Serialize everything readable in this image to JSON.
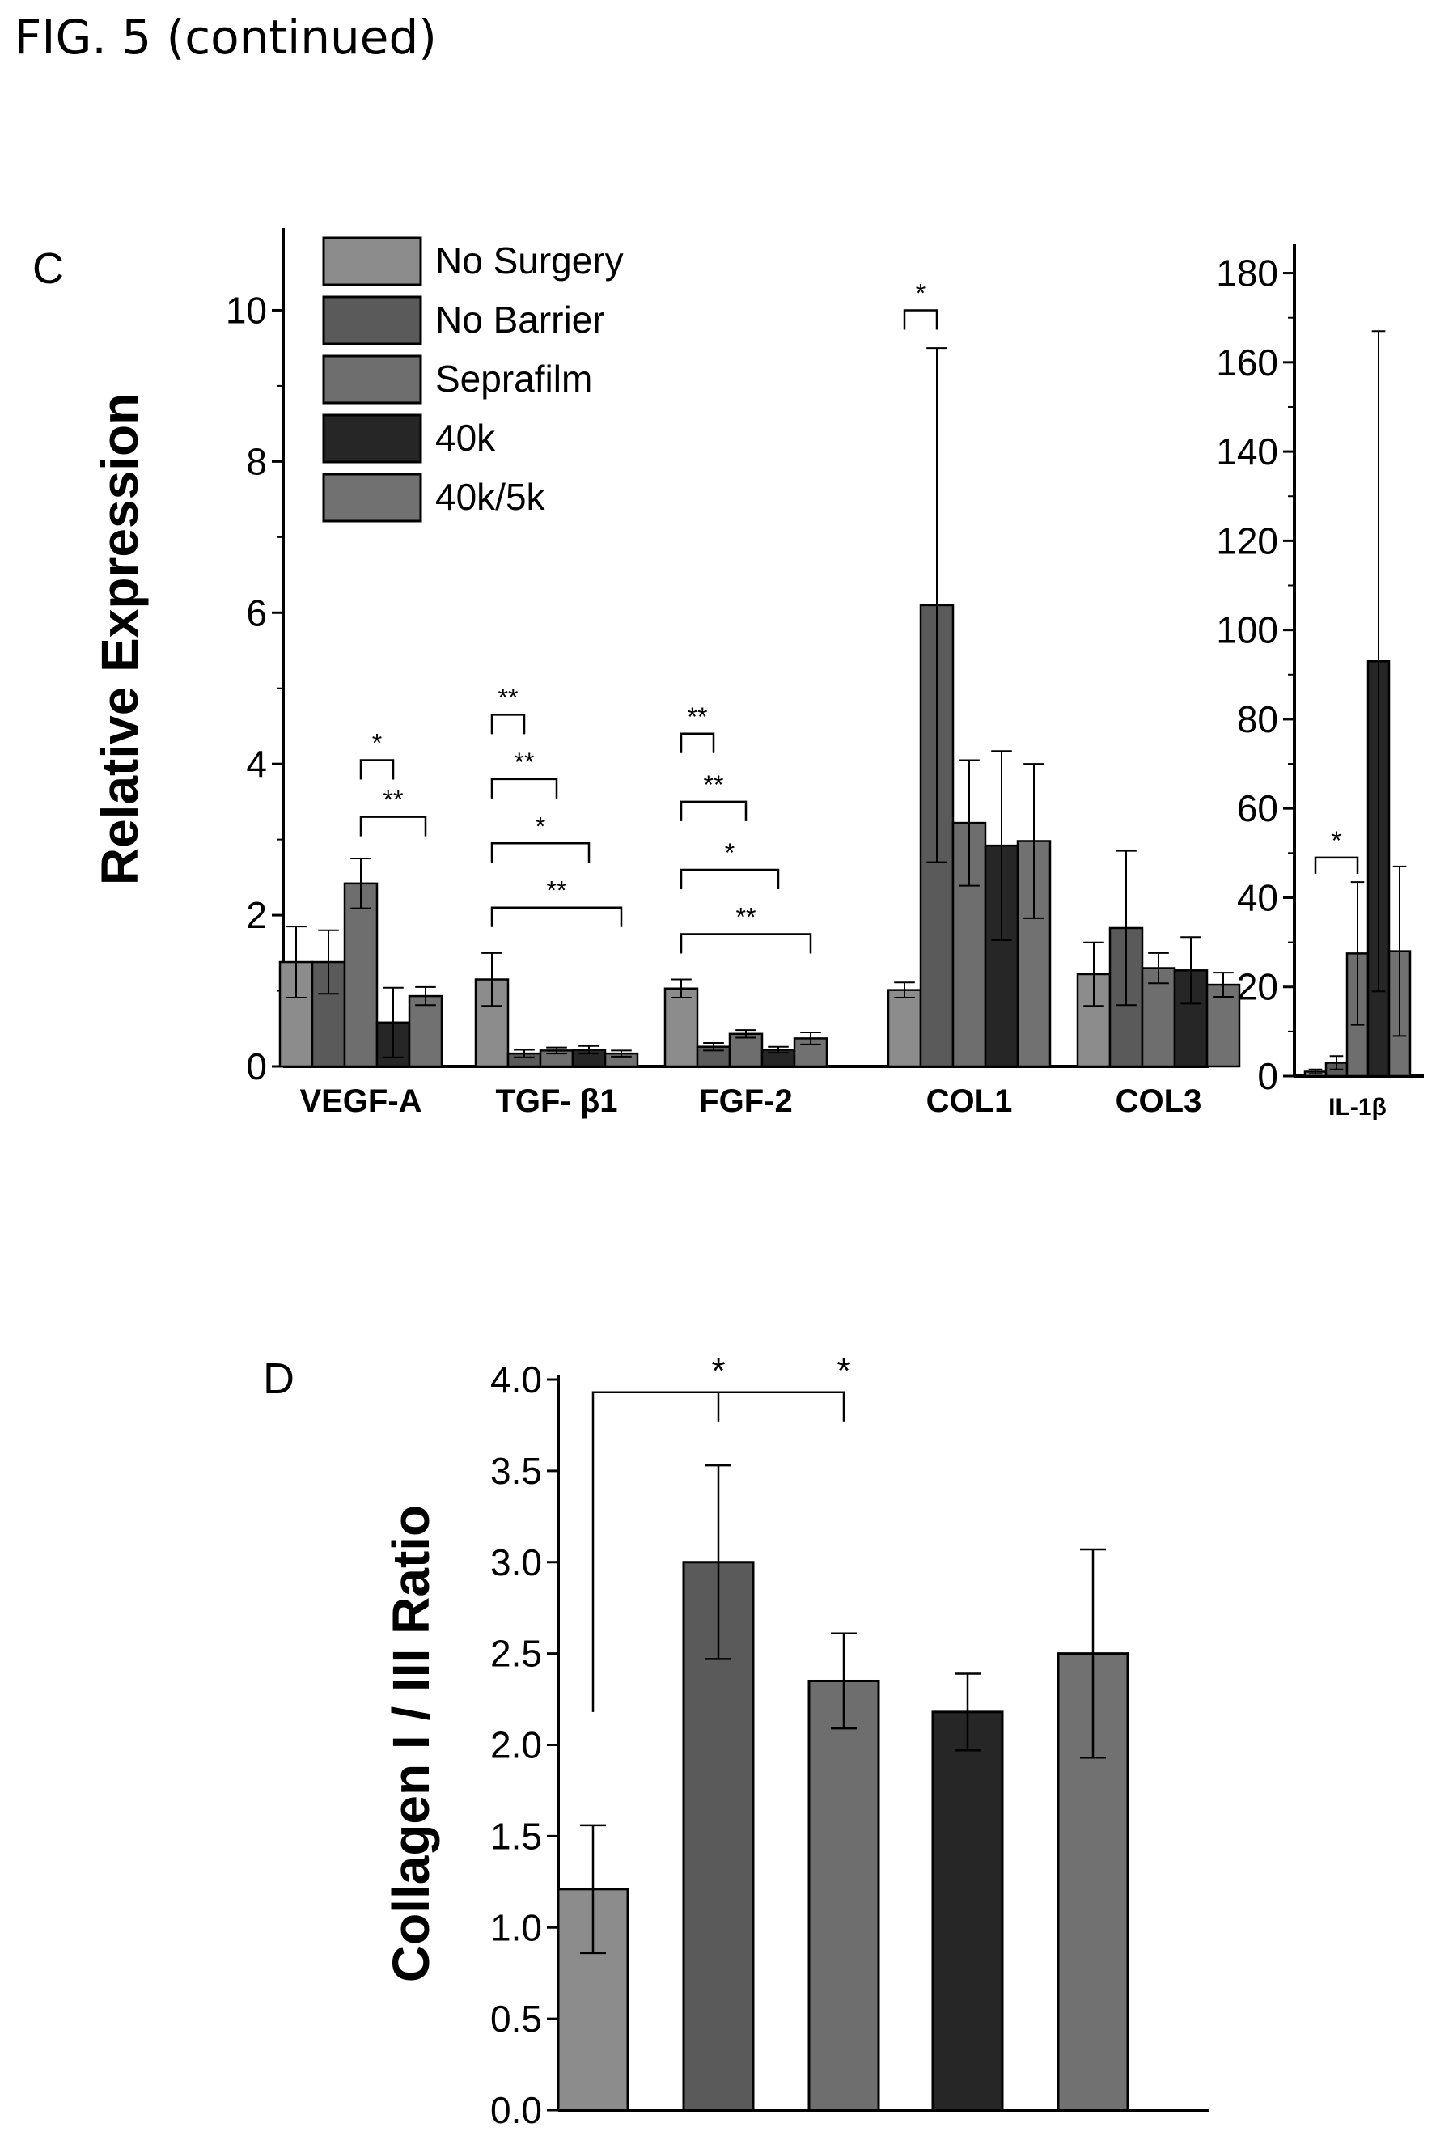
{
  "page": {
    "caption": "FIG. 5 (continued)"
  },
  "colors": {
    "No Surgery": "#8c8c8c",
    "No Barrier": "#5a5a5a",
    "Seprafilm": "#6e6e6e",
    "40k": "#262626",
    "40k/5k": "#717171"
  },
  "chart_data": [
    {
      "panel": "C",
      "type": "bar",
      "ylabel": "Relative Expression",
      "ylim": [
        0,
        11
      ],
      "yticks": [
        0,
        2,
        4,
        6,
        8,
        10
      ],
      "legend": [
        "No Surgery",
        "No Barrier",
        "Seprafilm",
        "40k",
        "40k/5k"
      ],
      "legend_position": "top-left",
      "categories": [
        "VEGF-A",
        "TGF- β1",
        "FGF-2",
        "COL1",
        "COL3"
      ],
      "series": [
        {
          "name": "No Surgery",
          "values": [
            1.38,
            1.15,
            1.03,
            1.01,
            1.22
          ],
          "errors": [
            0.47,
            0.35,
            0.12,
            0.1,
            0.42
          ]
        },
        {
          "name": "No Barrier",
          "values": [
            1.38,
            0.17,
            0.26,
            6.1,
            1.83
          ],
          "errors": [
            0.42,
            0.05,
            0.05,
            3.4,
            1.02
          ]
        },
        {
          "name": "Seprafilm",
          "values": [
            2.42,
            0.21,
            0.43,
            3.22,
            1.3
          ],
          "errors": [
            0.33,
            0.04,
            0.05,
            0.83,
            0.2
          ]
        },
        {
          "name": "40k",
          "values": [
            0.58,
            0.22,
            0.22,
            2.92,
            1.27
          ],
          "errors": [
            0.46,
            0.05,
            0.04,
            1.25,
            0.44
          ]
        },
        {
          "name": "40k/5k",
          "values": [
            0.93,
            0.17,
            0.37,
            2.98,
            1.08
          ],
          "errors": [
            0.12,
            0.04,
            0.08,
            1.02,
            0.16
          ]
        }
      ],
      "significance": [
        {
          "category": "VEGF-A",
          "from": 2,
          "to": 3,
          "label": "*",
          "y": 4.05
        },
        {
          "category": "VEGF-A",
          "from": 2,
          "to": 4,
          "label": "**",
          "y": 3.3
        },
        {
          "category": "TGF- β1",
          "from": 0,
          "to": 1,
          "label": "**",
          "y": 4.65
        },
        {
          "category": "TGF- β1",
          "from": 0,
          "to": 2,
          "label": "**",
          "y": 3.8
        },
        {
          "category": "TGF- β1",
          "from": 0,
          "to": 3,
          "label": "*",
          "y": 2.95
        },
        {
          "category": "TGF- β1",
          "from": 0,
          "to": 4,
          "label": "**",
          "y": 2.1
        },
        {
          "category": "FGF-2",
          "from": 0,
          "to": 1,
          "label": "**",
          "y": 4.4
        },
        {
          "category": "FGF-2",
          "from": 0,
          "to": 2,
          "label": "**",
          "y": 3.5
        },
        {
          "category": "FGF-2",
          "from": 0,
          "to": 3,
          "label": "*",
          "y": 2.6
        },
        {
          "category": "FGF-2",
          "from": 0,
          "to": 4,
          "label": "**",
          "y": 1.75
        },
        {
          "category": "COL1",
          "from": 0,
          "to": 1,
          "label": "*",
          "y": 10.0
        }
      ]
    },
    {
      "panel": "",
      "type": "bar",
      "ylim": [
        0,
        185
      ],
      "yticks": [
        0,
        20,
        40,
        60,
        80,
        100,
        120,
        140,
        160,
        180
      ],
      "categories": [
        "IL-1β"
      ],
      "series": [
        {
          "name": "No Surgery",
          "values": [
            1
          ],
          "errors": [
            0.5
          ]
        },
        {
          "name": "No Barrier",
          "values": [
            3
          ],
          "errors": [
            1.5
          ]
        },
        {
          "name": "Seprafilm",
          "values": [
            27.5
          ],
          "errors": [
            16
          ]
        },
        {
          "name": "40k",
          "values": [
            93
          ],
          "errors": [
            74
          ]
        },
        {
          "name": "40k/5k",
          "values": [
            28
          ],
          "errors": [
            19
          ]
        }
      ],
      "significance": [
        {
          "category": "IL-1β",
          "from": 0,
          "to": 2,
          "label": "*",
          "y": 49
        }
      ]
    },
    {
      "panel": "D",
      "type": "bar",
      "ylabel": "Collagen I / III Ratio",
      "ylim": [
        0,
        4.0
      ],
      "yticks": [
        "0.0",
        "0.5",
        "1.0",
        "1.5",
        "2.0",
        "2.5",
        "3.0",
        "3.5",
        "4.0"
      ],
      "series": [
        {
          "name": "No Surgery",
          "values": [
            1.21
          ],
          "errors": [
            0.35
          ]
        },
        {
          "name": "No Barrier",
          "values": [
            3.0
          ],
          "errors": [
            0.53
          ]
        },
        {
          "name": "Seprafilm",
          "values": [
            2.35
          ],
          "errors": [
            0.26
          ]
        },
        {
          "name": "40k",
          "values": [
            2.18
          ],
          "errors": [
            0.21
          ]
        },
        {
          "name": "40k/5k",
          "values": [
            2.5
          ],
          "errors": [
            0.57
          ]
        }
      ],
      "significance": [
        {
          "from": 0,
          "to": 1,
          "label": "*",
          "y": 3.93
        },
        {
          "from": 0,
          "to": 2,
          "label": "*",
          "y": 3.93
        }
      ]
    }
  ]
}
